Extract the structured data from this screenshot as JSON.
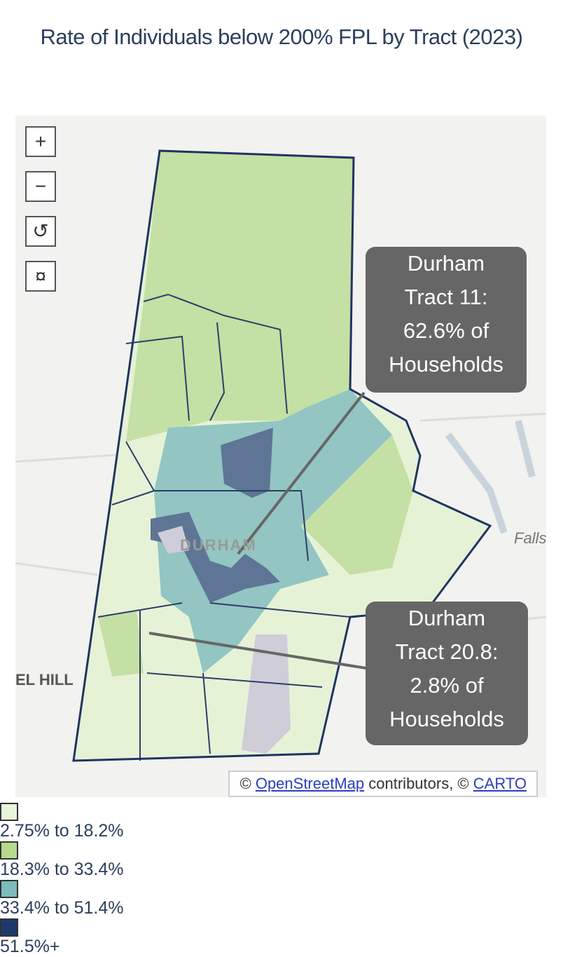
{
  "title": "Rate of Individuals below 200% FPL by Tract (2023)",
  "map": {
    "controls": [
      "+",
      "−",
      "↺",
      "¤"
    ],
    "place_labels": [
      "DURHAM",
      "Falls",
      "EL HILL"
    ],
    "annotations": [
      {
        "lines": [
          "Durham",
          "Tract 11:",
          "62.6% of",
          "Households"
        ]
      },
      {
        "lines": [
          "Durham",
          "Tract 20.8:",
          "2.8% of",
          "Households"
        ]
      }
    ],
    "attribution": {
      "prefix": "©",
      "link1": "OpenStreetMap",
      "middle": "contributors, ©",
      "link2": "CARTO"
    }
  },
  "legend": [
    {
      "label": "2.75% to 18.2%",
      "color": "#e9f5d8"
    },
    {
      "label": "18.3% to 33.4%",
      "color": "#b5da8c"
    },
    {
      "label": "33.4% to 51.4%",
      "color": "#7cbcbd"
    },
    {
      "label": "51.5%+",
      "color": "#1e3a6b"
    }
  ]
}
